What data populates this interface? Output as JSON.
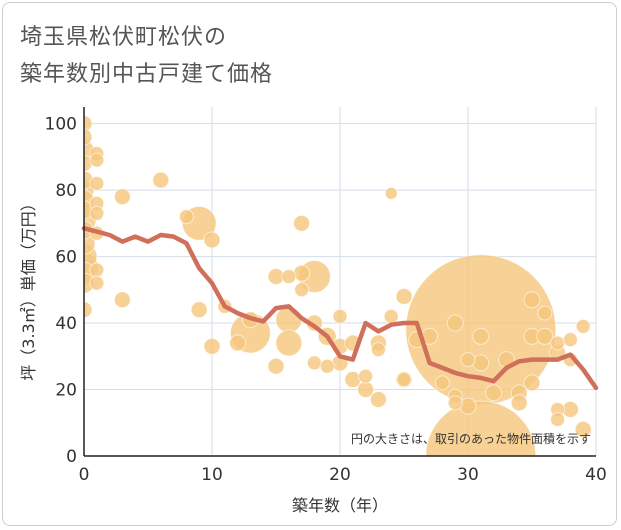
{
  "chart_data": {
    "type": "bubble+line",
    "title_line1": "埼玉県松伏町松伏の",
    "title_line2": "築年数別中古戸建て価格",
    "xlabel": "築年数（年）",
    "ylabel": "坪（3.3㎡）単価（万円）",
    "xlim": [
      0,
      40
    ],
    "ylim": [
      0,
      105
    ],
    "x_ticks": [
      0,
      10,
      20,
      30,
      40
    ],
    "y_ticks": [
      0,
      20,
      40,
      60,
      80,
      100
    ],
    "note": "円の大きさは、取引のあった物件面積を示す",
    "colors": {
      "bubble": "#F5C77E",
      "line": "#D0705A",
      "grid": "#D4DEEA"
    },
    "trend_line": [
      [
        0,
        68.5
      ],
      [
        1,
        67.5
      ],
      [
        2,
        66.5
      ],
      [
        3,
        64.5
      ],
      [
        4,
        66
      ],
      [
        5,
        64.5
      ],
      [
        6,
        66.5
      ],
      [
        7,
        66
      ],
      [
        8,
        64
      ],
      [
        9,
        56.5
      ],
      [
        10,
        52
      ],
      [
        11,
        45
      ],
      [
        12,
        43
      ],
      [
        13,
        41.5
      ],
      [
        14,
        40.5
      ],
      [
        15,
        44.5
      ],
      [
        16,
        45
      ],
      [
        17,
        41.5
      ],
      [
        18,
        39
      ],
      [
        19,
        36
      ],
      [
        20,
        30
      ],
      [
        21,
        29
      ],
      [
        22,
        40
      ],
      [
        23,
        37.5
      ],
      [
        24,
        39.5
      ],
      [
        25,
        40
      ],
      [
        26,
        40
      ],
      [
        27,
        28
      ],
      [
        28,
        26.5
      ],
      [
        29,
        25
      ],
      [
        30,
        24
      ],
      [
        31,
        23.5
      ],
      [
        32,
        22.5
      ],
      [
        33,
        26.5
      ],
      [
        34,
        28.5
      ],
      [
        35,
        29
      ],
      [
        36,
        29
      ],
      [
        37,
        29
      ],
      [
        38,
        30.5
      ],
      [
        39,
        26
      ],
      [
        40,
        20.5
      ]
    ],
    "bubbles": [
      [
        0,
        100,
        8
      ],
      [
        0,
        96,
        8
      ],
      [
        0,
        92,
        10
      ],
      [
        0,
        88,
        8
      ],
      [
        0,
        83,
        9
      ],
      [
        0,
        80,
        10
      ],
      [
        0,
        77,
        10
      ],
      [
        0,
        74,
        9
      ],
      [
        0,
        71,
        12
      ],
      [
        0,
        68,
        9
      ],
      [
        0,
        64,
        11
      ],
      [
        0,
        60,
        13
      ],
      [
        0,
        57,
        14
      ],
      [
        0,
        55,
        11
      ],
      [
        0,
        52,
        10
      ],
      [
        0,
        44,
        8
      ],
      [
        1,
        91,
        7
      ],
      [
        1,
        89,
        7
      ],
      [
        1,
        82,
        7
      ],
      [
        1,
        76,
        7
      ],
      [
        1,
        73,
        7
      ],
      [
        1,
        67,
        7
      ],
      [
        1,
        56,
        7
      ],
      [
        1,
        52,
        7
      ],
      [
        3,
        78,
        8
      ],
      [
        3,
        47,
        8
      ],
      [
        6,
        83,
        8
      ],
      [
        8,
        72,
        7
      ],
      [
        9,
        70,
        17
      ],
      [
        9,
        44,
        8
      ],
      [
        10,
        65,
        8
      ],
      [
        10,
        33,
        8
      ],
      [
        11,
        45,
        7
      ],
      [
        12,
        34,
        8
      ],
      [
        13,
        37,
        20
      ],
      [
        13,
        41,
        8
      ],
      [
        15,
        54,
        8
      ],
      [
        15,
        27,
        8
      ],
      [
        16,
        54,
        7
      ],
      [
        16,
        41,
        13
      ],
      [
        16,
        34,
        13
      ],
      [
        17,
        70,
        8
      ],
      [
        17,
        55,
        8
      ],
      [
        17,
        50,
        7
      ],
      [
        18,
        54,
        16
      ],
      [
        18,
        40,
        8
      ],
      [
        18,
        28,
        7
      ],
      [
        19,
        36,
        9
      ],
      [
        19,
        27,
        7
      ],
      [
        20,
        42,
        7
      ],
      [
        20,
        33,
        8
      ],
      [
        20,
        28,
        8
      ],
      [
        21,
        23,
        8
      ],
      [
        21,
        34,
        8
      ],
      [
        22,
        24,
        7
      ],
      [
        22,
        20,
        8
      ],
      [
        23,
        34,
        8
      ],
      [
        23,
        32,
        7
      ],
      [
        23,
        17,
        8
      ],
      [
        24,
        79,
        6
      ],
      [
        24,
        42,
        7
      ],
      [
        25,
        48,
        8
      ],
      [
        25,
        23,
        7
      ],
      [
        25,
        23,
        8
      ],
      [
        26,
        35,
        8
      ],
      [
        27,
        36,
        8
      ],
      [
        28,
        22,
        7
      ],
      [
        29,
        40,
        8
      ],
      [
        29,
        18,
        7
      ],
      [
        29,
        16,
        7
      ],
      [
        30,
        29,
        7
      ],
      [
        30,
        15,
        8
      ],
      [
        31,
        38,
        75
      ],
      [
        31,
        0,
        55
      ],
      [
        31,
        36,
        8
      ],
      [
        31,
        28,
        8
      ],
      [
        32,
        19,
        8
      ],
      [
        33,
        29,
        8
      ],
      [
        34,
        19,
        8
      ],
      [
        34,
        16,
        8
      ],
      [
        35,
        47,
        8
      ],
      [
        35,
        36,
        8
      ],
      [
        35,
        22,
        8
      ],
      [
        36,
        43,
        7
      ],
      [
        36,
        36,
        8
      ],
      [
        37,
        34,
        7
      ],
      [
        37,
        31,
        8
      ],
      [
        37,
        14,
        7
      ],
      [
        37,
        11,
        7
      ],
      [
        38,
        35,
        7
      ],
      [
        38,
        29,
        7
      ],
      [
        38,
        14,
        8
      ],
      [
        39,
        39,
        7
      ],
      [
        39,
        8,
        8
      ]
    ]
  }
}
